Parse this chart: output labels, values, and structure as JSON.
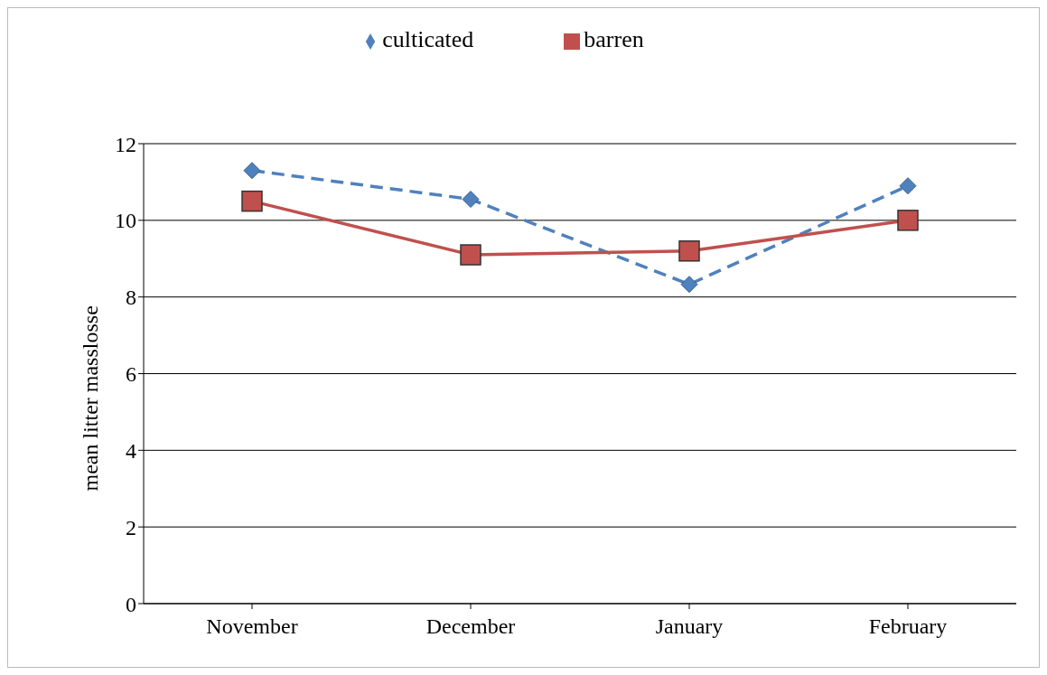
{
  "chart_data": {
    "type": "line",
    "ylabel": "mean litter masslosse",
    "categories": [
      "November",
      "December",
      "January",
      "February"
    ],
    "series": [
      {
        "name": "culticated",
        "color": "#4f81bd",
        "values": [
          11.3,
          10.55,
          8.33,
          10.9
        ],
        "marker": "diamond",
        "line_style": "dashed"
      },
      {
        "name": "barren",
        "color": "#c0504d",
        "values": [
          10.5,
          9.1,
          9.2,
          10.0
        ],
        "marker": "square",
        "line_style": "solid"
      }
    ],
    "ylim": [
      0,
      12
    ],
    "yticks": [
      0,
      2,
      4,
      6,
      8,
      10,
      12
    ],
    "grid": "y",
    "legend": "top"
  }
}
